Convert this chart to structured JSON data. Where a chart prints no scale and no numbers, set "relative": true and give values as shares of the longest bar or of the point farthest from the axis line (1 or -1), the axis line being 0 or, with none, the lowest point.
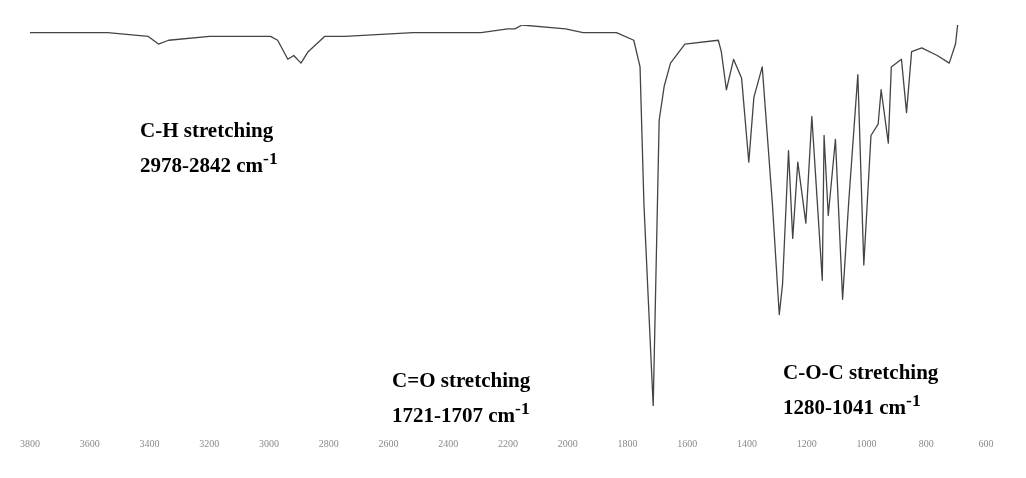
{
  "chart_data": {
    "type": "line",
    "relative": true,
    "x": [
      3800,
      3540,
      3404,
      3370,
      3336,
      3199,
      2995,
      2971,
      2937,
      2917,
      2893,
      2869,
      2814,
      2746,
      2518,
      2348,
      2290,
      2201,
      2177,
      2153,
      2007,
      1949,
      1837,
      1779,
      1758,
      1745,
      1724,
      1714,
      1707,
      1694,
      1677,
      1656,
      1608,
      1496,
      1486,
      1469,
      1445,
      1418,
      1394,
      1377,
      1349,
      1315,
      1292,
      1281,
      1261,
      1247,
      1230,
      1203,
      1183,
      1148,
      1142,
      1128,
      1104,
      1080,
      1060,
      1029,
      1009,
      985,
      961,
      951,
      927,
      917,
      883,
      866,
      849,
      815,
      763,
      723,
      702,
      695
    ],
    "series": [
      {
        "color": "#444444",
        "values": [
          0.98,
          0.98,
          0.97,
          0.95,
          0.96,
          0.97,
          0.97,
          0.96,
          0.91,
          0.92,
          0.9,
          0.93,
          0.97,
          0.97,
          0.98,
          0.98,
          0.98,
          0.99,
          0.99,
          1,
          0.99,
          0.98,
          0.98,
          0.96,
          0.89,
          0.53,
          0.17,
          0,
          0.26,
          0.75,
          0.84,
          0.9,
          0.95,
          0.96,
          0.93,
          0.83,
          0.91,
          0.86,
          0.64,
          0.81,
          0.89,
          0.53,
          0.24,
          0.32,
          0.67,
          0.44,
          0.64,
          0.48,
          0.76,
          0.33,
          0.71,
          0.5,
          0.7,
          0.28,
          0.53,
          0.87,
          0.37,
          0.71,
          0.74,
          0.83,
          0.69,
          0.89,
          0.91,
          0.77,
          0.93,
          0.94,
          0.92,
          0.9,
          0.95,
          1
        ]
      }
    ],
    "xlim": [
      3800,
      600
    ],
    "xticks": [
      3800,
      3600,
      3400,
      3200,
      3000,
      2800,
      2600,
      2400,
      2200,
      2000,
      1800,
      1600,
      1400,
      1200,
      1000,
      800,
      600
    ],
    "annotations": [
      "C-H stretching\n2978-2842 cm$^{-1}$",
      "C=O stretching\n1721-1707 cm$^{-1}$",
      "C-O-C stretching\n1280-1041 cm$^{-1}$"
    ],
    "grid": false,
    "legend": false,
    "marker": "none",
    "line_style": "solid"
  }
}
